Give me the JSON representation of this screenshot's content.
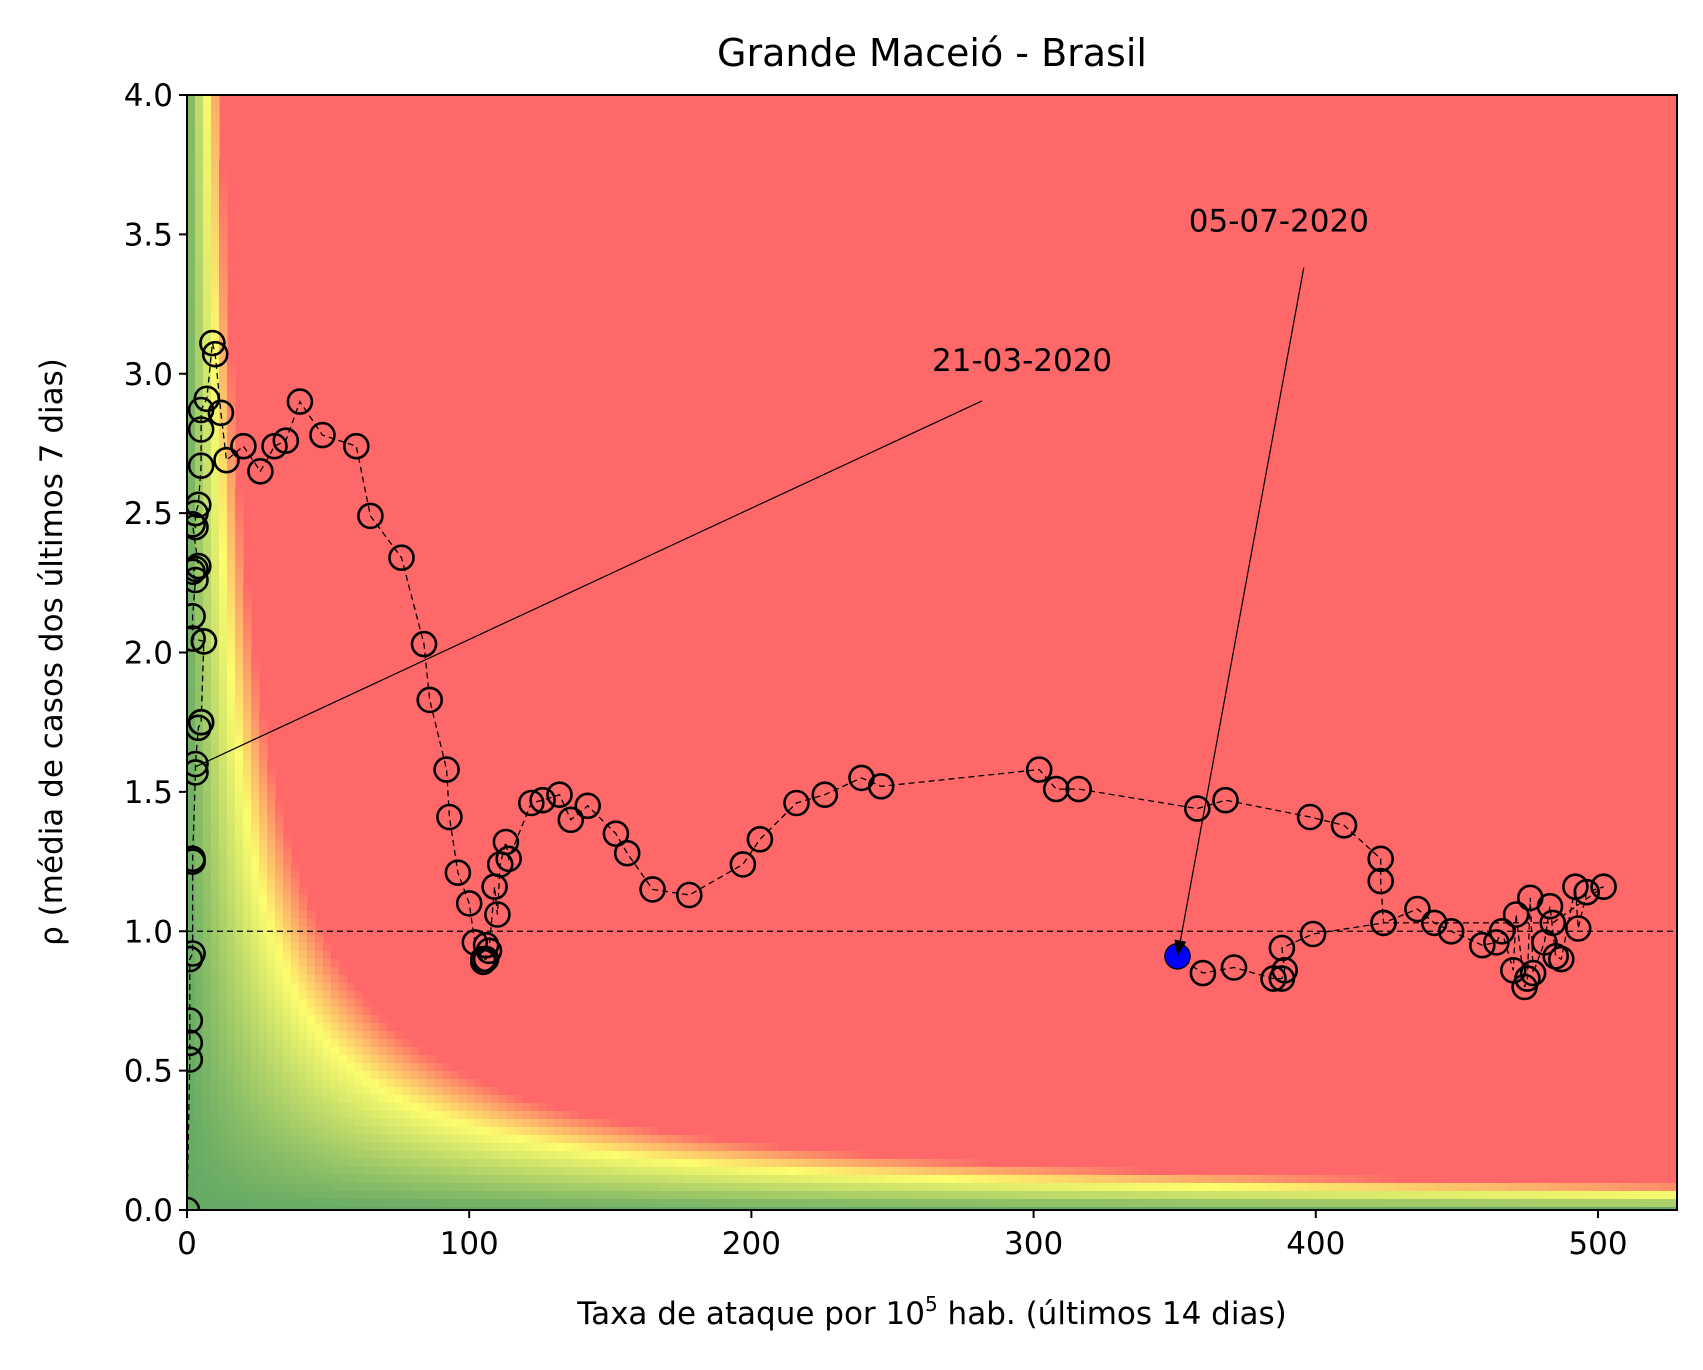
{
  "chart_data": {
    "type": "scatter",
    "title": "Grande Maceió - Brasil",
    "xlabel_prefix": "Taxa de ataque por 10",
    "xlabel_sup": "5",
    "xlabel_suffix": " hab. (últimos 14 dias)",
    "ylabel": "ρ (média de casos dos últimos 7 dias)",
    "xlim": [
      0,
      528
    ],
    "ylim": [
      0,
      4.0
    ],
    "xticks": [
      0,
      100,
      200,
      300,
      400,
      500
    ],
    "xtick_labels": [
      "0",
      "100",
      "200",
      "300",
      "400",
      "500"
    ],
    "yticks": [
      0,
      0.5,
      1.0,
      1.5,
      2.0,
      2.5,
      3.0,
      3.5,
      4.0
    ],
    "ytick_labels": [
      "0.0",
      "0.5",
      "1.0",
      "1.5",
      "2.0",
      "2.5",
      "3.0",
      "3.5",
      "4.0"
    ],
    "reference_line_y": 1.0,
    "background_colors": {
      "low": "#64a964",
      "mid": "#fdfd6d",
      "high": "#ff6868"
    },
    "series": [
      {
        "marker": "open-circle",
        "line_style": "dashed",
        "color": "#000000",
        "x": [
          0,
          1,
          1,
          1,
          1,
          2,
          2,
          2,
          3,
          3,
          4,
          5,
          5,
          6,
          6,
          2,
          2,
          3,
          2,
          3,
          4,
          2,
          3,
          3,
          4,
          5,
          5,
          5,
          7,
          9,
          10,
          12,
          14,
          20,
          26,
          31,
          35,
          40,
          48,
          60,
          65,
          76,
          84,
          86,
          92,
          93,
          96,
          100,
          102,
          105,
          105,
          106,
          106,
          107,
          109,
          110,
          111,
          113,
          114,
          122,
          126,
          132,
          136,
          142,
          152,
          156,
          165,
          178,
          197,
          203,
          216,
          226,
          239,
          246,
          302,
          308,
          316,
          358,
          368,
          398,
          410,
          423,
          423,
          424,
          436,
          442,
          448,
          459,
          464,
          466,
          470,
          471,
          474,
          475,
          476,
          477,
          481,
          483,
          485,
          487,
          492,
          493,
          496,
          502,
          484,
          424,
          399,
          388,
          389,
          388,
          385,
          371,
          360,
          351
        ],
        "y": [
          0,
          0.54,
          0.6,
          0.68,
          0.9,
          0.92,
          1.25,
          1.26,
          1.57,
          1.6,
          1.73,
          1.75,
          1.75,
          2.04,
          2.04,
          2.05,
          2.13,
          2.26,
          2.29,
          2.3,
          2.31,
          2.46,
          2.45,
          2.5,
          2.53,
          2.67,
          2.8,
          2.87,
          2.91,
          3.11,
          3.07,
          2.86,
          2.69,
          2.74,
          2.65,
          2.74,
          2.76,
          2.9,
          2.78,
          2.74,
          2.49,
          2.34,
          2.03,
          1.83,
          1.58,
          1.41,
          1.21,
          1.1,
          0.96,
          0.89,
          0.9,
          0.9,
          0.95,
          0.93,
          1.16,
          1.06,
          1.24,
          1.32,
          1.26,
          1.46,
          1.47,
          1.49,
          1.4,
          1.45,
          1.35,
          1.28,
          1.15,
          1.13,
          1.24,
          1.33,
          1.46,
          1.49,
          1.55,
          1.52,
          1.58,
          1.51,
          1.51,
          1.44,
          1.47,
          1.41,
          1.38,
          1.26,
          1.18,
          1.03,
          1.08,
          1.03,
          1.0,
          0.95,
          0.96,
          1.0,
          0.86,
          1.06,
          0.8,
          0.83,
          1.12,
          0.85,
          0.96,
          1.09,
          0.91,
          0.9,
          1.16,
          1.01,
          1.14,
          1.16,
          1.03,
          1.03,
          0.99,
          0.94,
          0.86,
          0.83,
          0.83,
          0.87,
          0.85,
          0.91
        ]
      }
    ],
    "highlight_point": {
      "x": 351,
      "y": 0.91,
      "color": "#0000ff"
    },
    "annotations": [
      {
        "text": "21-03-2020",
        "text_x": 264,
        "text_y": 3.01,
        "target_x": 3,
        "target_y": 1.59
      },
      {
        "text": "05-07-2020",
        "text_x": 355,
        "text_y": 3.51,
        "target_x": 351,
        "target_y": 0.91
      }
    ]
  }
}
